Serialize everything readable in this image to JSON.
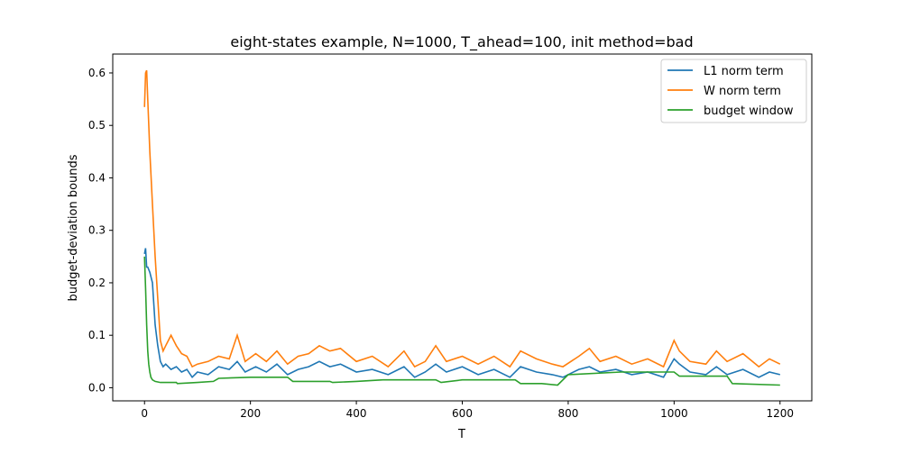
{
  "chart_data": {
    "type": "line",
    "title": "eight-states example, N=1000, T_ahead=100, init method=bad",
    "xlabel": "T",
    "ylabel": "budget-deviation bounds",
    "xlim": [
      -60,
      1260
    ],
    "ylim": [
      -0.025,
      0.636
    ],
    "xticks": [
      0,
      200,
      400,
      600,
      800,
      1000,
      1200
    ],
    "yticks": [
      0.0,
      0.1,
      0.2,
      0.3,
      0.4,
      0.5,
      0.6
    ],
    "xtick_labels": [
      "0",
      "200",
      "400",
      "600",
      "800",
      "1000",
      "1200"
    ],
    "ytick_labels": [
      "0.0",
      "0.1",
      "0.2",
      "0.3",
      "0.4",
      "0.5",
      "0.6"
    ],
    "grid": false,
    "legend_position": "top-right",
    "series": [
      {
        "name": "L1 norm term",
        "color": "#1f77b4",
        "x": [
          0,
          2,
          4,
          6,
          10,
          15,
          20,
          25,
          30,
          35,
          40,
          50,
          60,
          70,
          80,
          90,
          100,
          120,
          140,
          160,
          175,
          190,
          210,
          230,
          250,
          270,
          290,
          310,
          330,
          350,
          370,
          400,
          430,
          460,
          490,
          510,
          530,
          550,
          570,
          600,
          630,
          660,
          690,
          710,
          740,
          770,
          790,
          820,
          840,
          860,
          890,
          920,
          950,
          980,
          1000,
          1010,
          1030,
          1060,
          1080,
          1100,
          1130,
          1160,
          1180,
          1200
        ],
        "y": [
          0.255,
          0.266,
          0.23,
          0.23,
          0.22,
          0.2,
          0.12,
          0.08,
          0.05,
          0.04,
          0.045,
          0.035,
          0.04,
          0.03,
          0.035,
          0.02,
          0.03,
          0.025,
          0.04,
          0.035,
          0.05,
          0.03,
          0.04,
          0.03,
          0.045,
          0.025,
          0.035,
          0.04,
          0.05,
          0.04,
          0.045,
          0.03,
          0.035,
          0.025,
          0.04,
          0.02,
          0.03,
          0.045,
          0.03,
          0.04,
          0.025,
          0.035,
          0.02,
          0.04,
          0.03,
          0.025,
          0.02,
          0.035,
          0.04,
          0.03,
          0.035,
          0.025,
          0.03,
          0.02,
          0.055,
          0.045,
          0.03,
          0.025,
          0.04,
          0.025,
          0.035,
          0.02,
          0.03,
          0.025
        ]
      },
      {
        "name": "W norm term",
        "color": "#ff7f0e",
        "x": [
          0,
          2,
          4,
          6,
          10,
          15,
          20,
          25,
          30,
          35,
          40,
          50,
          60,
          70,
          80,
          90,
          100,
          120,
          140,
          160,
          175,
          190,
          210,
          230,
          250,
          270,
          290,
          310,
          330,
          350,
          370,
          400,
          430,
          460,
          490,
          510,
          530,
          550,
          570,
          600,
          630,
          660,
          690,
          710,
          740,
          770,
          790,
          820,
          840,
          860,
          890,
          920,
          950,
          980,
          1000,
          1010,
          1030,
          1060,
          1080,
          1100,
          1130,
          1160,
          1180,
          1200
        ],
        "y": [
          0.535,
          0.6,
          0.605,
          0.55,
          0.45,
          0.35,
          0.25,
          0.17,
          0.09,
          0.07,
          0.08,
          0.1,
          0.08,
          0.065,
          0.06,
          0.04,
          0.045,
          0.05,
          0.06,
          0.055,
          0.1,
          0.05,
          0.065,
          0.05,
          0.07,
          0.045,
          0.06,
          0.065,
          0.08,
          0.07,
          0.075,
          0.05,
          0.06,
          0.04,
          0.07,
          0.04,
          0.05,
          0.08,
          0.05,
          0.06,
          0.045,
          0.06,
          0.04,
          0.07,
          0.055,
          0.045,
          0.04,
          0.06,
          0.075,
          0.05,
          0.06,
          0.045,
          0.055,
          0.04,
          0.09,
          0.07,
          0.05,
          0.045,
          0.07,
          0.05,
          0.065,
          0.04,
          0.055,
          0.045
        ]
      },
      {
        "name": "budget window",
        "color": "#2ca02c",
        "x": [
          0,
          2,
          4,
          6,
          8,
          10,
          12,
          15,
          20,
          30,
          60,
          62,
          100,
          130,
          140,
          200,
          270,
          280,
          350,
          355,
          400,
          450,
          500,
          550,
          560,
          600,
          660,
          700,
          710,
          750,
          780,
          800,
          900,
          1000,
          1010,
          1050,
          1100,
          1110,
          1200
        ],
        "y": [
          0.25,
          0.19,
          0.12,
          0.07,
          0.045,
          0.03,
          0.02,
          0.015,
          0.012,
          0.01,
          0.01,
          0.008,
          0.01,
          0.012,
          0.018,
          0.02,
          0.02,
          0.012,
          0.012,
          0.01,
          0.012,
          0.015,
          0.015,
          0.015,
          0.01,
          0.015,
          0.015,
          0.015,
          0.008,
          0.008,
          0.005,
          0.025,
          0.03,
          0.03,
          0.022,
          0.022,
          0.022,
          0.008,
          0.005
        ]
      }
    ]
  }
}
